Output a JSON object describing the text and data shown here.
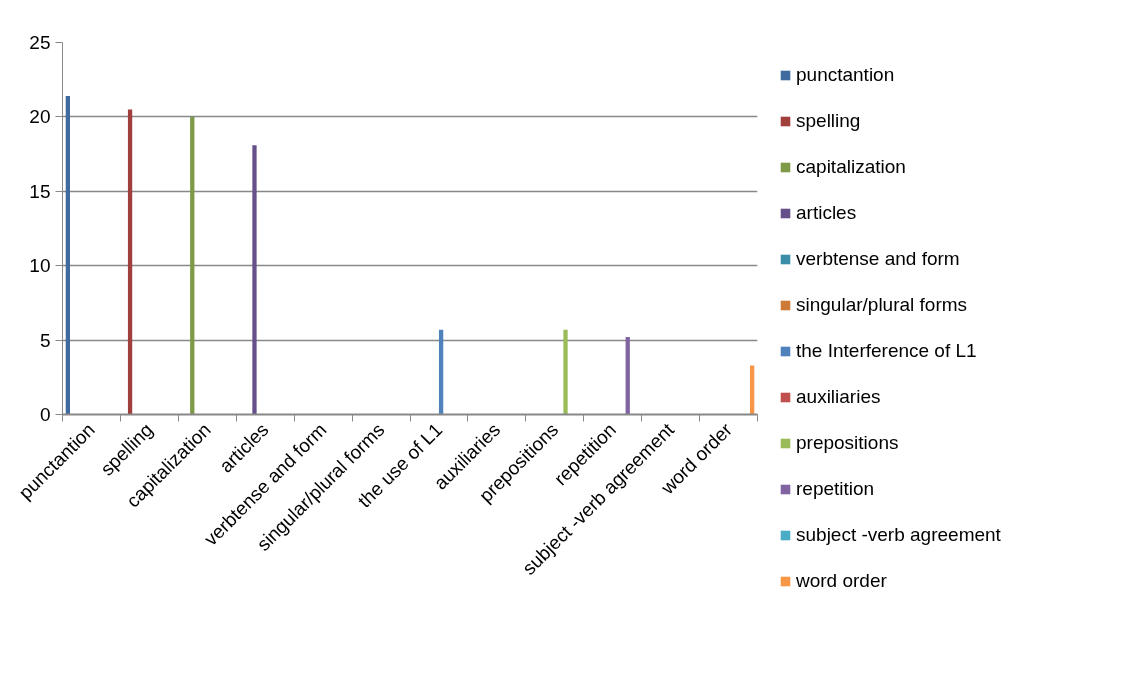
{
  "chart_data": {
    "type": "bar",
    "categories": [
      "punctantion",
      "spelling",
      "capitalization",
      "articles",
      "verbtense and form",
      "singular/plural forms",
      "the use of L1",
      "auxiliaries",
      "prepositions",
      "repetition",
      "subject -verb agreement",
      "word order"
    ],
    "series": [
      {
        "name": "punctantion",
        "color": "#3f6a9f",
        "values": [
          21.4,
          null,
          null,
          null,
          null,
          null,
          null,
          null,
          null,
          null,
          null,
          null
        ]
      },
      {
        "name": "spelling",
        "color": "#a13f3c",
        "values": [
          null,
          20.5,
          null,
          null,
          null,
          null,
          null,
          null,
          null,
          null,
          null,
          null
        ]
      },
      {
        "name": "capitalization",
        "color": "#7e9a47",
        "values": [
          null,
          null,
          20.0,
          null,
          null,
          null,
          null,
          null,
          null,
          null,
          null,
          null
        ]
      },
      {
        "name": "articles",
        "color": "#67508a",
        "values": [
          null,
          null,
          null,
          18.1,
          null,
          null,
          null,
          null,
          null,
          null,
          null,
          null
        ]
      },
      {
        "name": "verbtense and form",
        "color": "#3b8ea7",
        "values": [
          null,
          null,
          null,
          null,
          0,
          null,
          null,
          null,
          null,
          null,
          null,
          null
        ]
      },
      {
        "name": "singular/plural forms",
        "color": "#cc7a36",
        "values": [
          null,
          null,
          null,
          null,
          null,
          0,
          null,
          null,
          null,
          null,
          null,
          null
        ]
      },
      {
        "name": "the Interference of L1",
        "color": "#4f81bd",
        "values": [
          null,
          null,
          null,
          null,
          null,
          null,
          5.7,
          null,
          null,
          null,
          null,
          null
        ]
      },
      {
        "name": "auxiliaries",
        "color": "#c0504d",
        "values": [
          null,
          null,
          null,
          null,
          null,
          null,
          null,
          0,
          null,
          null,
          null,
          null
        ]
      },
      {
        "name": "prepositions",
        "color": "#9bbb59",
        "values": [
          null,
          null,
          null,
          null,
          null,
          null,
          null,
          null,
          5.7,
          null,
          null,
          null
        ]
      },
      {
        "name": "repetition",
        "color": "#8064a2",
        "values": [
          null,
          null,
          null,
          null,
          null,
          null,
          null,
          null,
          null,
          5.2,
          null,
          null
        ]
      },
      {
        "name": "subject -verb agreement",
        "color": "#4bacc6",
        "values": [
          null,
          null,
          null,
          null,
          null,
          null,
          null,
          null,
          null,
          null,
          0,
          null
        ]
      },
      {
        "name": "word order",
        "color": "#f79646",
        "values": [
          null,
          null,
          null,
          null,
          null,
          null,
          null,
          null,
          null,
          null,
          null,
          3.3
        ]
      }
    ],
    "ylim": [
      0,
      25
    ],
    "yticks": [
      0,
      5,
      10,
      15,
      20,
      25
    ],
    "grid": "y",
    "legend": "right"
  }
}
